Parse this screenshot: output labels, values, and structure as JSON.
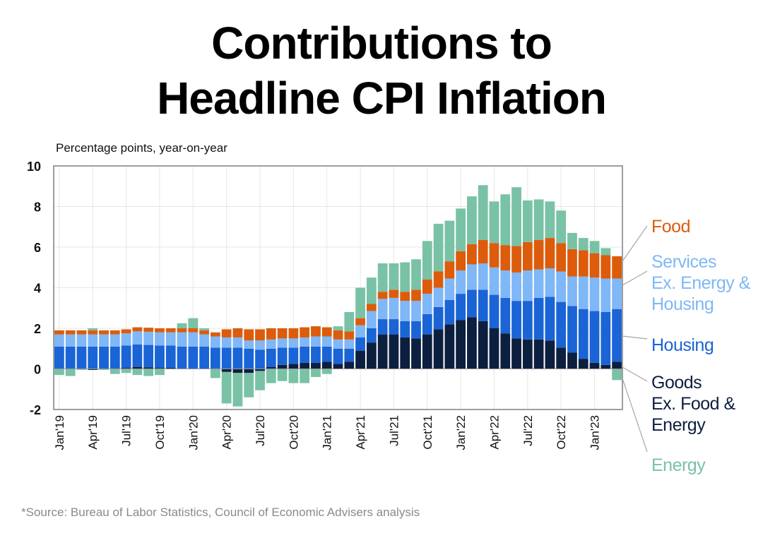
{
  "title_line1": "Contributions to",
  "title_line2": "Headline CPI Inflation",
  "source": "*Source: Bureau of Labor Statistics, Council of Economic Advisers analysis",
  "chart_data": {
    "type": "bar",
    "stacked": true,
    "title": "Contributions to Headline CPI Inflation",
    "ylabel": "Percentage points, year-on-year",
    "ylim": [
      -2,
      10
    ],
    "yticks": [
      10,
      8,
      6,
      4,
      2,
      0,
      -2
    ],
    "ytick_labels": [
      "10",
      "8",
      "6",
      "4",
      "2",
      "0",
      "-2"
    ],
    "grid": true,
    "xtick_labels": [
      "Jan'19",
      "Apr'19",
      "Jul'19",
      "Oct'19",
      "Jan'20",
      "Apr'20",
      "Jul'20",
      "Oct'20",
      "Jan'21",
      "Apr'21",
      "Jul'21",
      "Oct'21",
      "Jan'22",
      "Apr'22",
      "Jul'22",
      "Oct'22",
      "Jan'23"
    ],
    "xtick_every": 3,
    "months": [
      "Jan'19",
      "Feb'19",
      "Mar'19",
      "Apr'19",
      "May'19",
      "Jun'19",
      "Jul'19",
      "Aug'19",
      "Sep'19",
      "Oct'19",
      "Nov'19",
      "Dec'19",
      "Jan'20",
      "Feb'20",
      "Mar'20",
      "Apr'20",
      "May'20",
      "Jun'20",
      "Jul'20",
      "Aug'20",
      "Sep'20",
      "Oct'20",
      "Nov'20",
      "Dec'20",
      "Jan'21",
      "Feb'21",
      "Mar'21",
      "Apr'21",
      "May'21",
      "Jun'21",
      "Jul'21",
      "Aug'21",
      "Sep'21",
      "Oct'21",
      "Nov'21",
      "Dec'21",
      "Jan'22",
      "Feb'22",
      "Mar'22",
      "Apr'22",
      "May'22",
      "Jun'22",
      "Jul'22",
      "Aug'22",
      "Sep'22",
      "Oct'22",
      "Nov'22",
      "Dec'22",
      "Jan'23",
      "Feb'23",
      "Mar'23"
    ],
    "series": [
      {
        "name": "Goods Ex. Food & Energy",
        "color": "#0d1f3f",
        "legend_lines": [
          "Goods",
          "Ex. Food &",
          "Energy"
        ],
        "values": [
          0.0,
          0.0,
          0.0,
          -0.05,
          0.0,
          0.0,
          0.05,
          0.1,
          0.08,
          0.05,
          0.05,
          0.0,
          0.0,
          0.0,
          0.0,
          -0.15,
          -0.2,
          -0.2,
          -0.1,
          0.1,
          0.2,
          0.25,
          0.3,
          0.3,
          0.35,
          0.25,
          0.35,
          0.9,
          1.3,
          1.7,
          1.7,
          1.55,
          1.5,
          1.7,
          1.95,
          2.2,
          2.4,
          2.55,
          2.35,
          2.0,
          1.75,
          1.5,
          1.45,
          1.45,
          1.4,
          1.05,
          0.8,
          0.5,
          0.3,
          0.2,
          0.35
        ]
      },
      {
        "name": "Housing",
        "color": "#1a64d6",
        "legend_lines": [
          "Housing"
        ],
        "values": [
          1.1,
          1.1,
          1.1,
          1.1,
          1.1,
          1.1,
          1.1,
          1.1,
          1.1,
          1.1,
          1.1,
          1.1,
          1.1,
          1.1,
          1.05,
          1.05,
          1.05,
          1.0,
          0.95,
          0.9,
          0.85,
          0.8,
          0.8,
          0.8,
          0.75,
          0.75,
          0.65,
          0.65,
          0.7,
          0.75,
          0.75,
          0.8,
          0.85,
          1.0,
          1.1,
          1.2,
          1.3,
          1.35,
          1.55,
          1.65,
          1.75,
          1.85,
          1.9,
          2.05,
          2.15,
          2.25,
          2.3,
          2.45,
          2.55,
          2.6,
          2.6
        ]
      },
      {
        "name": "Services Ex. Energy & Housing",
        "color": "#7fb7f7",
        "legend_lines": [
          "Services",
          "Ex. Energy &",
          "Housing"
        ],
        "values": [
          0.6,
          0.6,
          0.6,
          0.6,
          0.6,
          0.6,
          0.6,
          0.65,
          0.65,
          0.65,
          0.65,
          0.7,
          0.7,
          0.6,
          0.55,
          0.5,
          0.5,
          0.4,
          0.45,
          0.45,
          0.45,
          0.45,
          0.45,
          0.5,
          0.5,
          0.45,
          0.45,
          0.6,
          0.85,
          1.0,
          1.05,
          1.0,
          1.0,
          1.0,
          0.95,
          1.05,
          1.15,
          1.25,
          1.3,
          1.35,
          1.35,
          1.4,
          1.5,
          1.4,
          1.4,
          1.5,
          1.45,
          1.6,
          1.65,
          1.65,
          1.5
        ]
      },
      {
        "name": "Food",
        "color": "#dc5c0c",
        "legend_lines": [
          "Food"
        ],
        "values": [
          0.2,
          0.2,
          0.2,
          0.2,
          0.2,
          0.2,
          0.2,
          0.2,
          0.2,
          0.2,
          0.2,
          0.2,
          0.2,
          0.2,
          0.2,
          0.4,
          0.45,
          0.55,
          0.55,
          0.55,
          0.5,
          0.5,
          0.5,
          0.5,
          0.45,
          0.45,
          0.4,
          0.35,
          0.35,
          0.35,
          0.4,
          0.45,
          0.55,
          0.7,
          0.8,
          0.85,
          0.95,
          1.0,
          1.15,
          1.2,
          1.25,
          1.3,
          1.4,
          1.45,
          1.5,
          1.4,
          1.35,
          1.3,
          1.2,
          1.15,
          1.1
        ]
      },
      {
        "name": "Energy",
        "color": "#79c2a5",
        "legend_lines": [
          "Energy"
        ],
        "values": [
          -0.3,
          -0.35,
          -0.05,
          0.1,
          -0.05,
          -0.25,
          -0.2,
          -0.3,
          -0.35,
          -0.3,
          0.0,
          0.25,
          0.5,
          0.1,
          -0.45,
          -1.55,
          -1.65,
          -1.2,
          -0.95,
          -0.7,
          -0.6,
          -0.7,
          -0.7,
          -0.4,
          -0.25,
          0.2,
          0.95,
          1.5,
          1.3,
          1.4,
          1.3,
          1.45,
          1.5,
          1.9,
          2.35,
          2.0,
          2.1,
          2.35,
          2.7,
          2.05,
          2.5,
          2.9,
          2.05,
          2.0,
          1.8,
          1.6,
          0.8,
          0.6,
          0.6,
          0.35,
          -0.55
        ]
      }
    ],
    "legend": [
      "Food",
      "Services Ex. Energy & Housing",
      "Housing",
      "Goods Ex. Food & Energy",
      "Energy"
    ],
    "legend_position": "right"
  }
}
